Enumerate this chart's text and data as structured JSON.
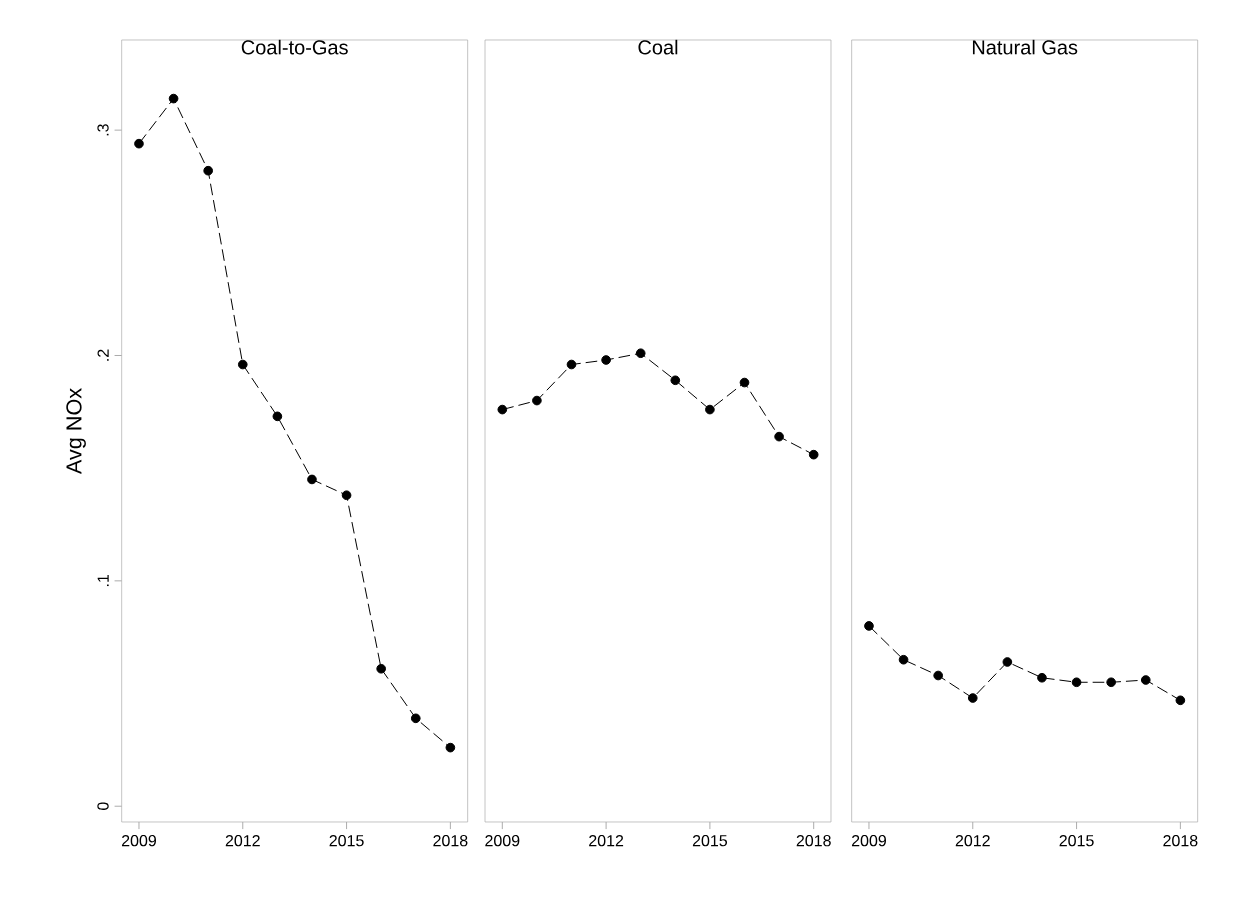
{
  "chart_data": [
    {
      "type": "line",
      "title": "Coal-to-Gas",
      "ylabel": "Avg NOx",
      "x": [
        2009,
        2010,
        2011,
        2012,
        2013,
        2014,
        2015,
        2016,
        2017,
        2018
      ],
      "series": [
        {
          "color": "#000000",
          "values": [
            0.294,
            0.314,
            0.282,
            0.196,
            0.173,
            0.145,
            0.138,
            0.061,
            0.039,
            0.026
          ]
        }
      ],
      "xlim": [
        2008.5,
        2018.5
      ],
      "ylim": [
        -0.007,
        0.34
      ],
      "xticks": [
        2009,
        2012,
        2015,
        2018
      ],
      "yticks": [
        {
          "value": 0,
          "label": "0"
        },
        {
          "value": 0.1,
          "label": ".1"
        },
        {
          "value": 0.2,
          "label": ".2"
        },
        {
          "value": 0.3,
          "label": ".3"
        }
      ],
      "marker": "circle",
      "line_style": "dashed",
      "grid": false
    },
    {
      "type": "line",
      "title": "Coal",
      "x": [
        2009,
        2010,
        2011,
        2012,
        2013,
        2014,
        2015,
        2016,
        2017,
        2018
      ],
      "series": [
        {
          "color": "#000000",
          "values": [
            0.176,
            0.18,
            0.196,
            0.198,
            0.201,
            0.189,
            0.176,
            0.188,
            0.164,
            0.156
          ]
        }
      ],
      "xlim": [
        2008.5,
        2018.5
      ],
      "ylim": [
        -0.007,
        0.34
      ],
      "xticks": [
        2009,
        2012,
        2015,
        2018
      ],
      "tick_labels": "x",
      "marker": "circle",
      "line_style": "dashed",
      "grid": false
    },
    {
      "type": "line",
      "title": "Natural Gas",
      "x": [
        2009,
        2010,
        2011,
        2012,
        2013,
        2014,
        2015,
        2016,
        2017,
        2018
      ],
      "series": [
        {
          "color": "#000000",
          "values": [
            0.08,
            0.065,
            0.058,
            0.048,
            0.064,
            0.057,
            0.055,
            0.055,
            0.056,
            0.047
          ]
        }
      ],
      "xlim": [
        2008.5,
        2018.5
      ],
      "ylim": [
        -0.007,
        0.34
      ],
      "xticks": [
        2009,
        2012,
        2015,
        2018
      ],
      "tick_labels": "x",
      "marker": "circle",
      "line_style": "dashed",
      "grid": false
    }
  ]
}
